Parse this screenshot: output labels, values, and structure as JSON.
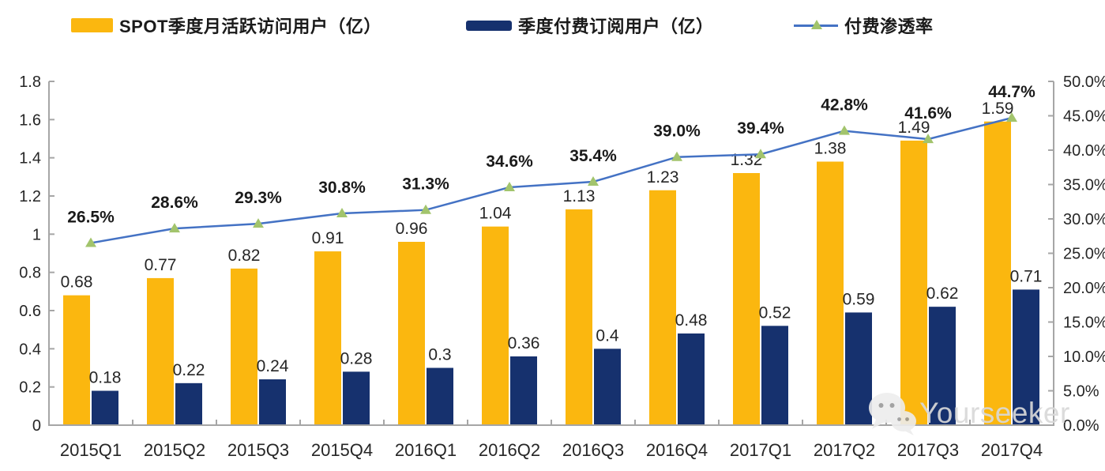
{
  "legend": {
    "items": [
      {
        "label": "SPOT季度月活跃访问用户（亿）",
        "swatch": "bar",
        "color": "#FBB70F"
      },
      {
        "label": "季度付费订阅用户（亿）",
        "swatch": "bar",
        "color": "#16316E"
      },
      {
        "label": "付费渗透率",
        "swatch": "line-triangle-marker",
        "color": "#4472C4"
      }
    ]
  },
  "chart_data": {
    "type": "bar",
    "subtype": "grouped bars with secondary-axis line",
    "categories": [
      "2015Q1",
      "2015Q2",
      "2015Q3",
      "2015Q4",
      "2016Q1",
      "2016Q2",
      "2016Q3",
      "2016Q4",
      "2017Q1",
      "2017Q2",
      "2017Q3",
      "2017Q4"
    ],
    "series": [
      {
        "name": "SPOT季度月活跃访问用户（亿）",
        "type": "bar",
        "axis": "left",
        "color": "#FBB70F",
        "values": [
          0.68,
          0.77,
          0.82,
          0.91,
          0.96,
          1.04,
          1.13,
          1.23,
          1.32,
          1.38,
          1.49,
          1.59
        ],
        "labels": [
          "0.68",
          "0.77",
          "0.82",
          "0.91",
          "0.96",
          "1.04",
          "1.13",
          "1.23",
          "1.32",
          "1.38",
          "1.49",
          "1.59"
        ]
      },
      {
        "name": "季度付费订阅用户（亿）",
        "type": "bar",
        "axis": "left",
        "color": "#16316E",
        "values": [
          0.18,
          0.22,
          0.24,
          0.28,
          0.3,
          0.36,
          0.4,
          0.48,
          0.52,
          0.59,
          0.62,
          0.71
        ],
        "labels": [
          "0.18",
          "0.22",
          "0.24",
          "0.28",
          "0.3",
          "0.36",
          "0.4",
          "0.48",
          "0.52",
          "0.59",
          "0.62",
          "0.71"
        ]
      },
      {
        "name": "付费渗透率",
        "type": "line",
        "axis": "right",
        "color": "#4472C4",
        "marker": "triangle",
        "marker_color": "#A2C46C",
        "values": [
          26.5,
          28.6,
          29.3,
          30.8,
          31.3,
          34.6,
          35.4,
          39.0,
          39.4,
          42.8,
          41.6,
          44.7
        ],
        "labels": [
          "26.5%",
          "28.6%",
          "29.3%",
          "30.8%",
          "31.3%",
          "34.6%",
          "35.4%",
          "39.0%",
          "39.4%",
          "42.8%",
          "41.6%",
          "44.7%"
        ]
      }
    ],
    "left_axis": {
      "min": 0,
      "max": 1.8,
      "step": 0.2,
      "tick_labels": [
        "0",
        "0.2",
        "0.4",
        "0.6",
        "0.8",
        "1",
        "1.2",
        "1.4",
        "1.6",
        "1.8"
      ]
    },
    "right_axis": {
      "min": 0,
      "max": 50,
      "step": 5,
      "tick_labels": [
        "0.0%",
        "5.0%",
        "10.0%",
        "15.0%",
        "20.0%",
        "25.0%",
        "30.0%",
        "35.0%",
        "40.0%",
        "45.0%",
        "50.0%"
      ]
    },
    "grid": false,
    "legend_position": "top",
    "axis_color": "#A6A6A6",
    "text_color": "#262626"
  },
  "watermark": {
    "text": "Yourseeker",
    "icon": "wechat-icon"
  }
}
